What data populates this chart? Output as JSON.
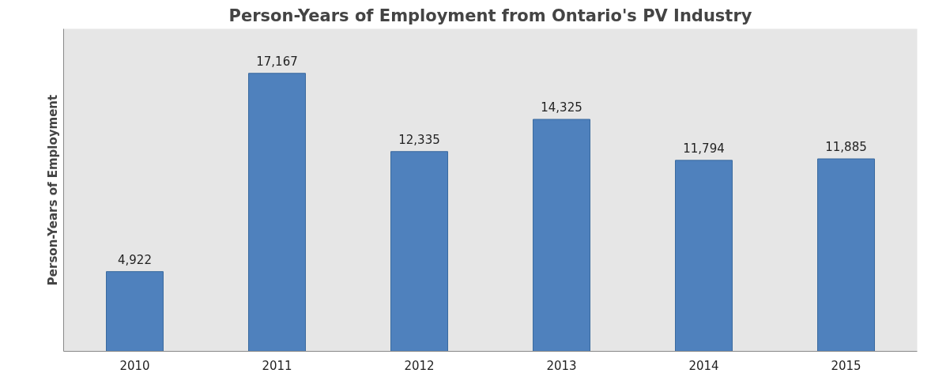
{
  "chart_data": {
    "type": "bar",
    "title": "Person-Years of Employment from Ontario's PV Industry",
    "ylabel": "Person-Years of Employment",
    "categories": [
      "2010",
      "2011",
      "2012",
      "2013",
      "2014",
      "2015"
    ],
    "values": [
      4922,
      17167,
      12335,
      14325,
      11794,
      11885
    ],
    "value_labels": [
      "4,922",
      "17,167",
      "12,335",
      "14,325",
      "11,794",
      "11,885"
    ],
    "color": "#4f81bd",
    "tick_labels": "x"
  }
}
